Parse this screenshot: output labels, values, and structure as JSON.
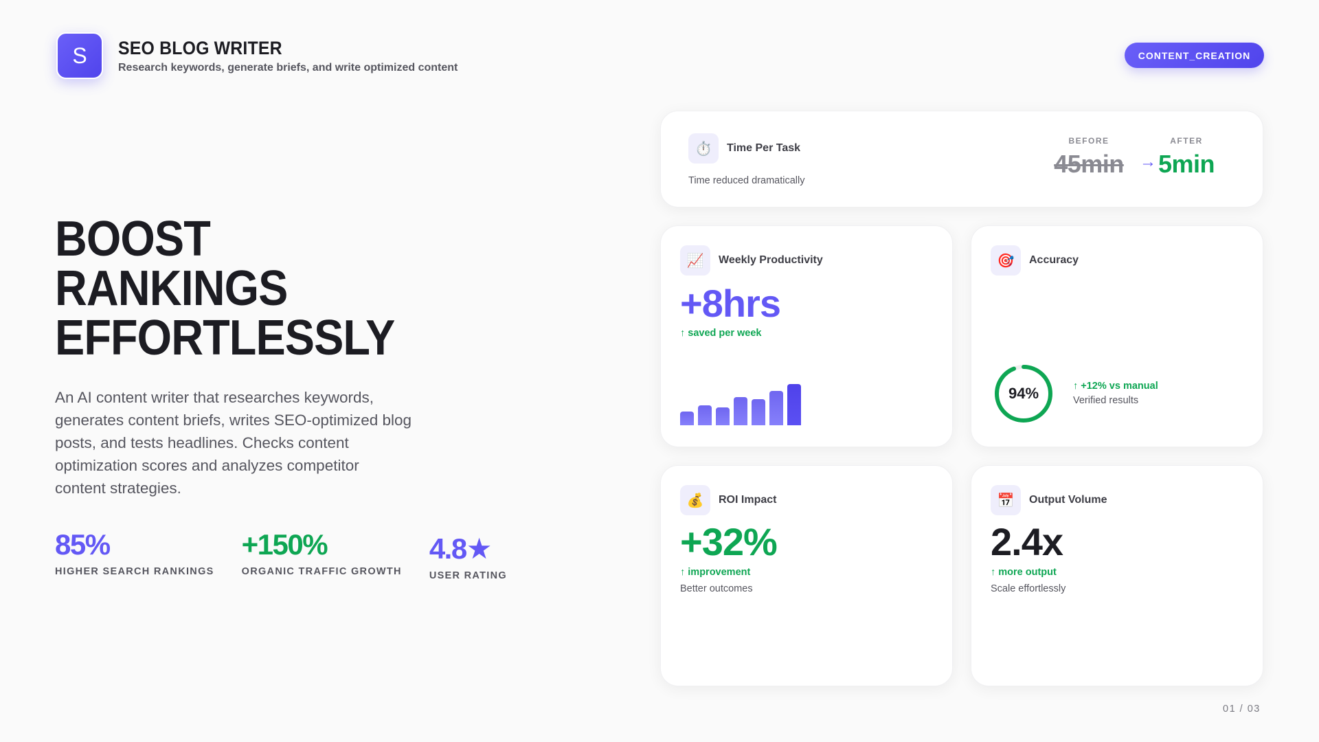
{
  "header": {
    "logo_letter": "S",
    "title": "SEO BLOG WRITER",
    "subtitle": "Research keywords, generate briefs, and write optimized content"
  },
  "badge": {
    "label": "CONTENT_CREATION"
  },
  "hero": {
    "headline": [
      "BOOST",
      "RANKINGS",
      "EFFORTLESSLY"
    ],
    "description": "An AI content writer that researches keywords, generates content briefs, writes SEO-optimized blog posts, and tests headlines. Checks content optimization scores and analyzes competitor content strategies."
  },
  "stats": [
    {
      "value": "85%",
      "label": "HIGHER SEARCH RANKINGS",
      "color": "#6358f5"
    },
    {
      "value": "+150%",
      "label": "ORGANIC TRAFFIC GROWTH",
      "color": "#0ea653"
    },
    {
      "value": "4.8★",
      "label": "USER RATING",
      "color": "#6358f5"
    }
  ],
  "cards": {
    "time_per_task": {
      "icon": "stopwatch-icon",
      "icon_glyph": "⏱️",
      "title": "Time Per Task",
      "subtitle": "Time reduced dramatically",
      "before_label": "BEFORE",
      "before_value": "45min",
      "arrow": "→",
      "after_label": "AFTER",
      "after_value": "5min"
    },
    "weekly_productivity": {
      "icon": "chart-increasing-icon",
      "icon_glyph": "📈",
      "title": "Weekly Productivity",
      "value": "+8hrs",
      "trend": "↑ saved per week",
      "bars": [
        20,
        29,
        26,
        41,
        38,
        50,
        60
      ]
    },
    "accuracy": {
      "icon": "target-icon",
      "icon_glyph": "🎯",
      "title": "Accuracy",
      "value": "94%",
      "percent": 94,
      "trend": "↑ +12% vs manual",
      "subtitle": "Verified results"
    },
    "roi_impact": {
      "icon": "money-bag-icon",
      "icon_glyph": "💰",
      "title": "ROI Impact",
      "value": "+32%",
      "trend": "↑ improvement",
      "subtitle": "Better outcomes"
    },
    "output_volume": {
      "icon": "calendar-icon",
      "icon_glyph": "📅",
      "title": "Output Volume",
      "value": "2.4x",
      "trend": "↑ more output",
      "subtitle": "Scale effortlessly"
    }
  },
  "pager": {
    "label": "01 / 03"
  },
  "colors": {
    "accent": "#6358f5",
    "positive": "#0ea653",
    "text": "#1c1c22",
    "muted": "#55555e",
    "background": "#fafafa"
  }
}
